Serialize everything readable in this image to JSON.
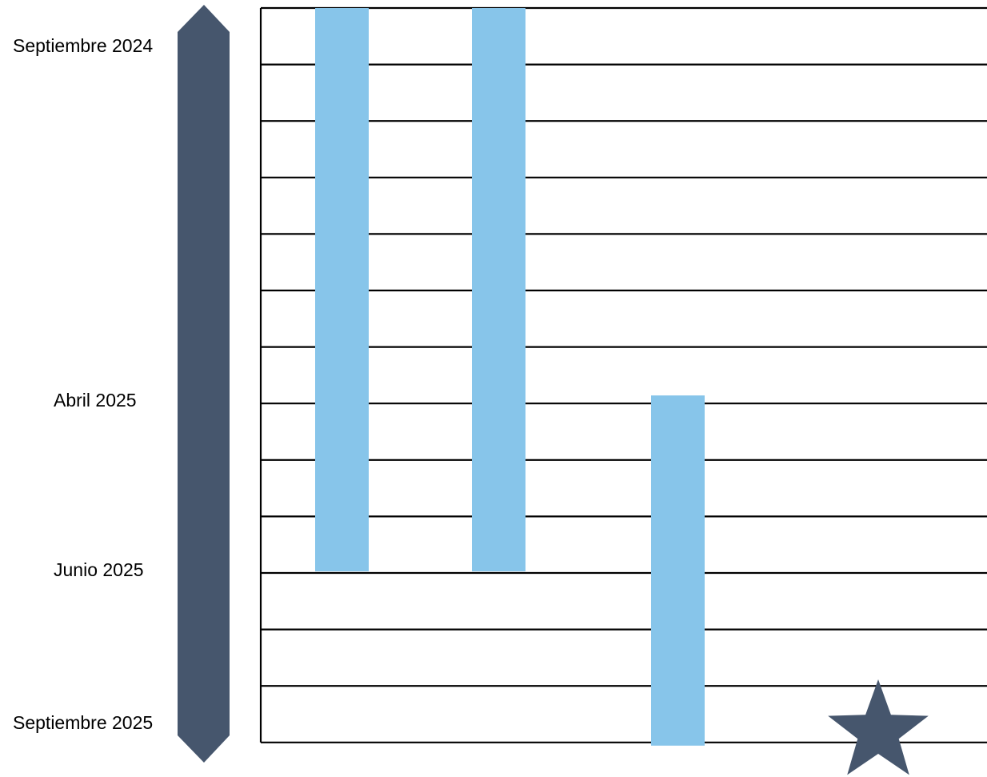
{
  "timeline": {
    "labels": {
      "start": "Septiembre 2024",
      "april": "Abril 2025",
      "june": "Junio 2025",
      "end": "Septiembre 2025"
    },
    "rows": 13,
    "bars": [
      {
        "start_row": 0,
        "end_row": 10
      },
      {
        "start_row": 0,
        "end_row": 10
      },
      {
        "start_row": 7,
        "end_row": 13
      }
    ],
    "milestone_icon": "star-icon"
  },
  "colors": {
    "arrow": "#46566d",
    "bar": "#87c5ea",
    "star": "#46566d",
    "grid": "#000000"
  }
}
